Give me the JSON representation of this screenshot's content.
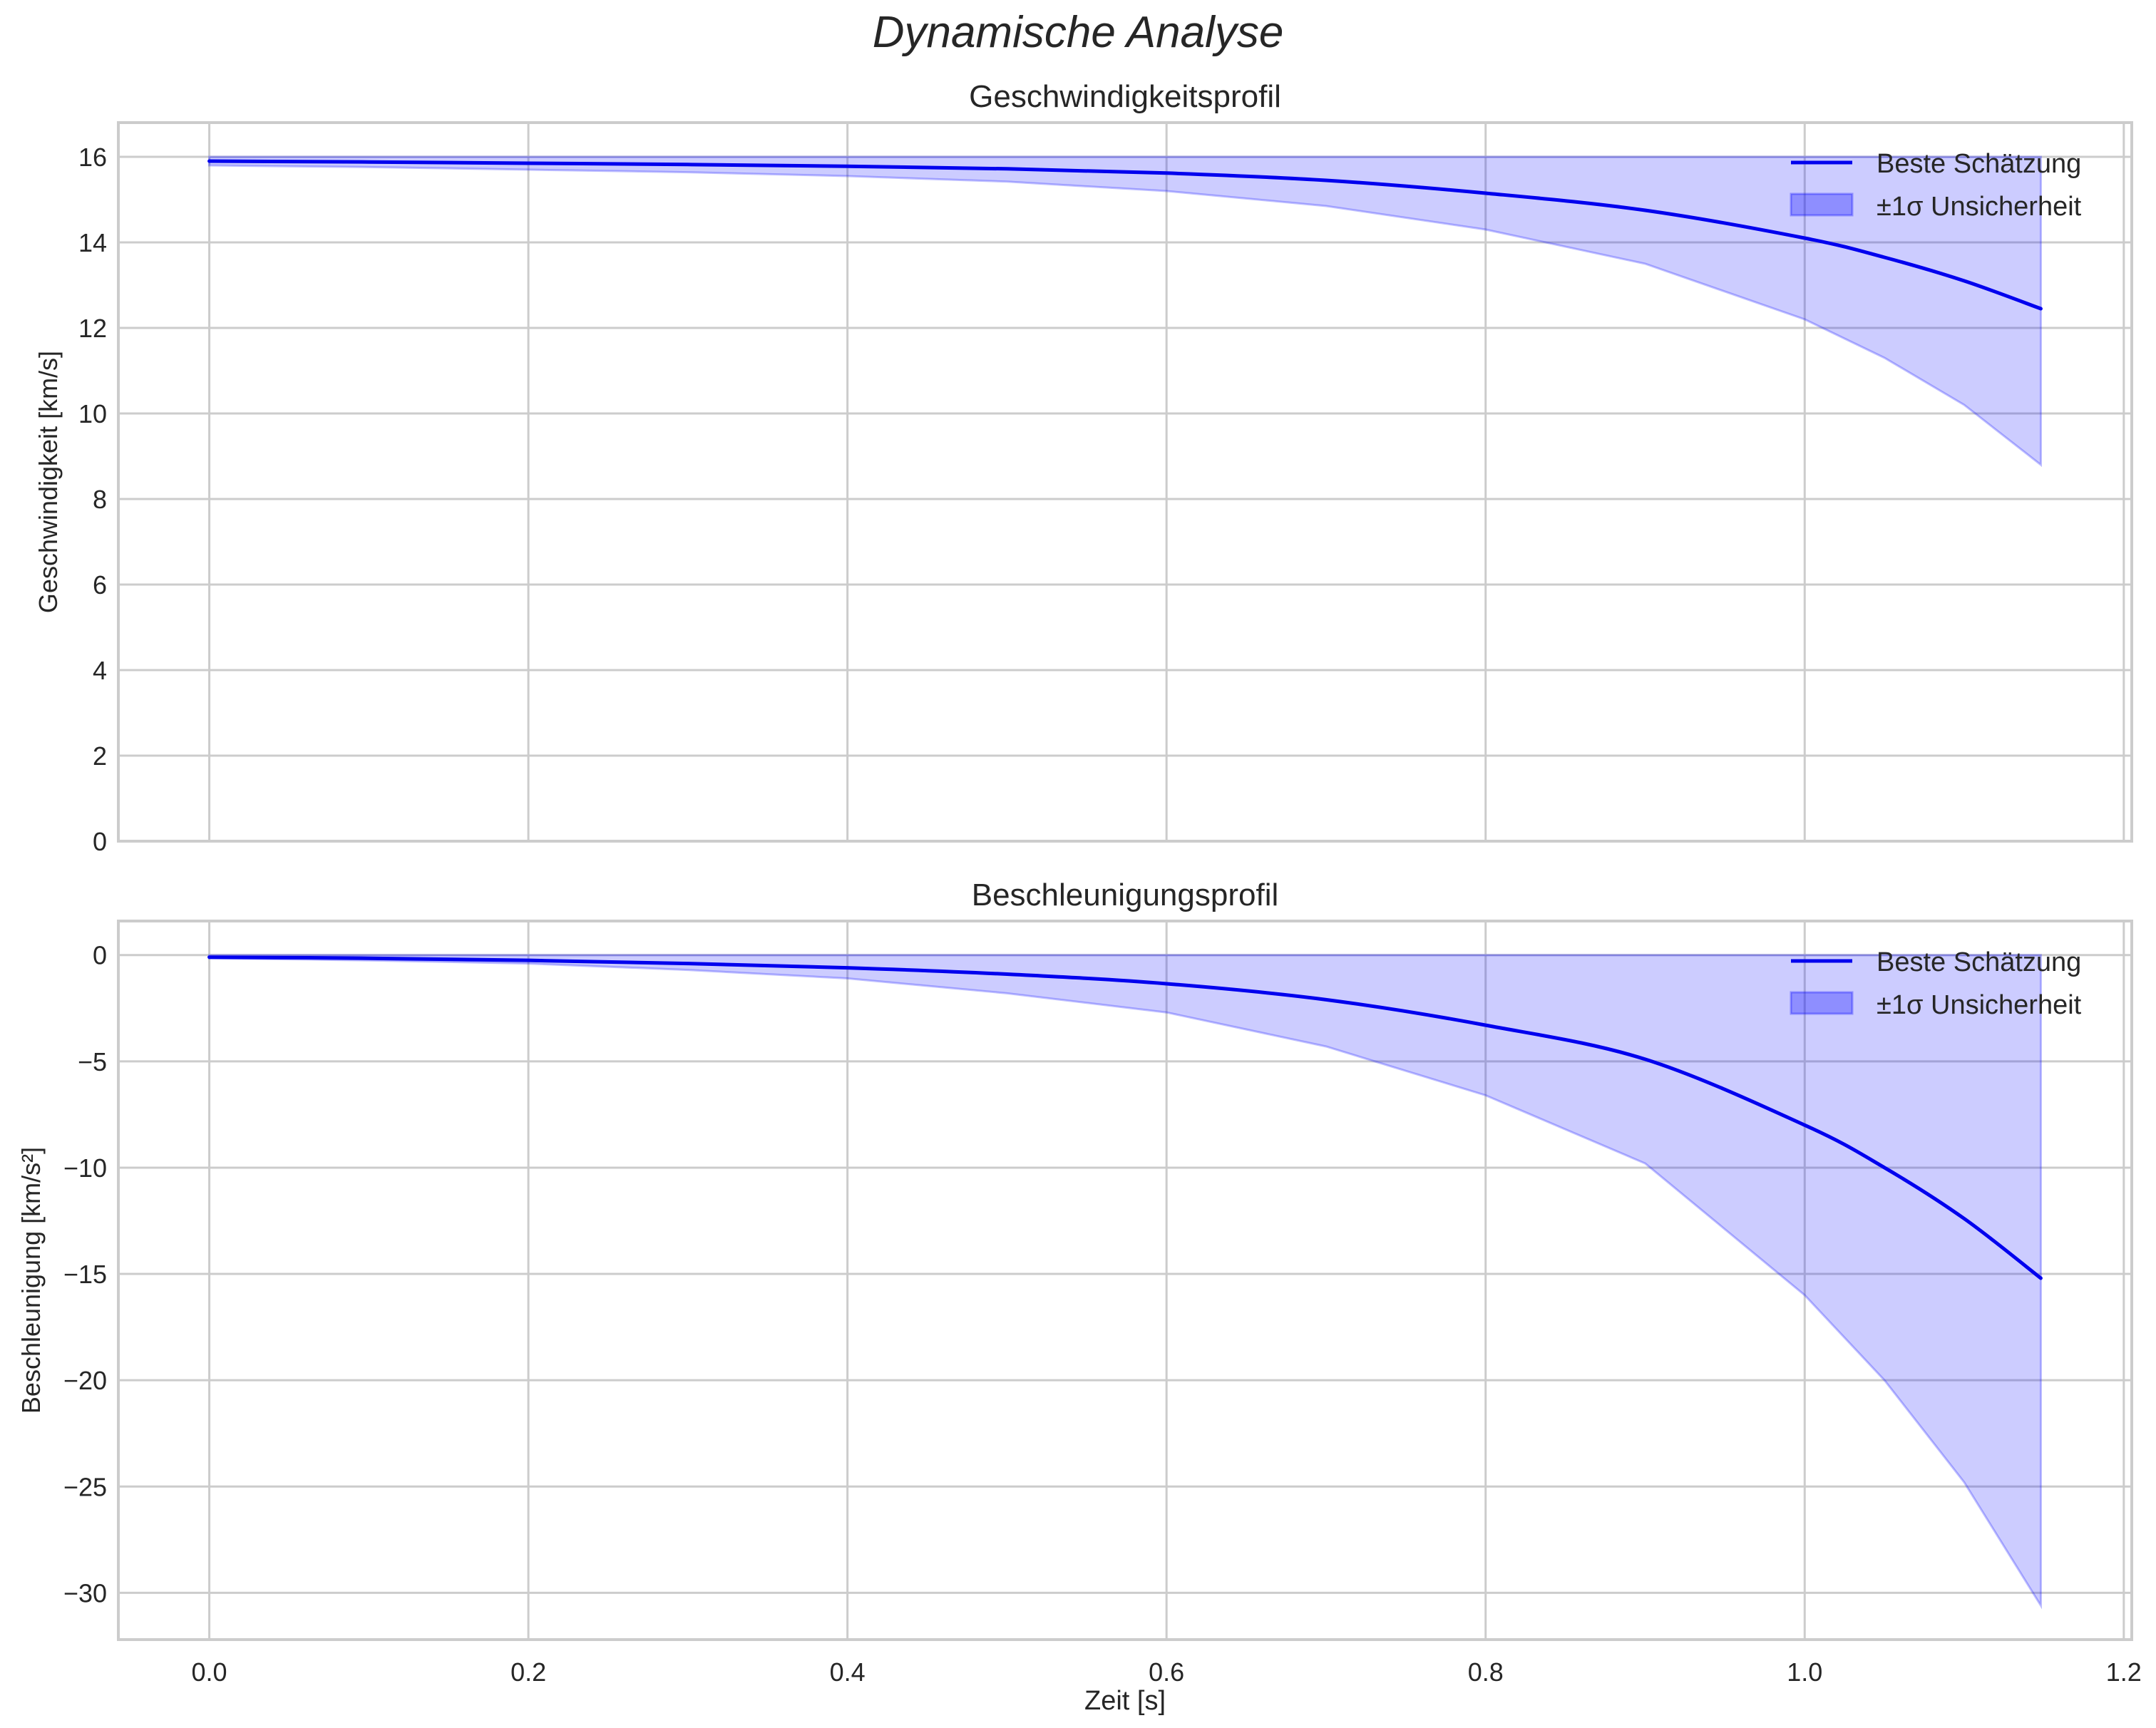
{
  "figure": {
    "suptitle": "Dynamische Analyse",
    "xlabel": "Zeit [s]"
  },
  "style": {
    "line_color": "#0000ee",
    "band_color": "#0000ff",
    "band_alpha": 0.2,
    "grid_color": "#cccccc",
    "axis_color": "#cccccc",
    "text_color": "#262626"
  },
  "chart_data": [
    {
      "type": "line",
      "title": "Geschwindigkeitsprofil",
      "xlabel": "",
      "ylabel": "Geschwindigkeit [km/s]",
      "xlim": [
        -0.057,
        1.205
      ],
      "ylim": [
        0,
        16.8
      ],
      "xticks": [
        "0.0",
        "0.2",
        "0.4",
        "0.6",
        "0.8",
        "1.0",
        "1.2"
      ],
      "xtick_values": [
        0,
        0.2,
        0.4,
        0.6,
        0.8,
        1.0,
        1.2
      ],
      "show_xticklabels": false,
      "yticks": [
        "0",
        "2",
        "4",
        "6",
        "8",
        "10",
        "12",
        "14",
        "16"
      ],
      "ytick_values": [
        0,
        2,
        4,
        6,
        8,
        10,
        12,
        14,
        16
      ],
      "grid": true,
      "legend_position": "upper right",
      "legend": [
        "Beste Schätzung",
        "±1σ Unsicherheit"
      ],
      "x": [
        0.0,
        0.1,
        0.2,
        0.3,
        0.4,
        0.5,
        0.6,
        0.7,
        0.8,
        0.9,
        1.0,
        1.05,
        1.1,
        1.148
      ],
      "series": [
        {
          "name": "Beste Schätzung",
          "kind": "line",
          "values": [
            15.9,
            15.88,
            15.85,
            15.82,
            15.78,
            15.72,
            15.62,
            15.45,
            15.15,
            14.75,
            14.1,
            13.65,
            13.1,
            12.45
          ]
        },
        {
          "name": "±1σ Unsicherheit (oben)",
          "kind": "band_upper",
          "values": [
            16.0,
            16.0,
            16.0,
            16.0,
            16.0,
            16.0,
            16.0,
            16.0,
            16.0,
            16.0,
            16.0,
            16.0,
            16.0,
            16.0
          ]
        },
        {
          "name": "±1σ Unsicherheit (unten)",
          "kind": "band_lower",
          "values": [
            15.8,
            15.76,
            15.7,
            15.64,
            15.55,
            15.42,
            15.2,
            14.85,
            14.3,
            13.5,
            12.2,
            11.3,
            10.2,
            8.8
          ]
        }
      ]
    },
    {
      "type": "line",
      "title": "Beschleunigungsprofil",
      "xlabel": "Zeit [s]",
      "ylabel": "Beschleunigung [km/s²]",
      "xlim": [
        -0.057,
        1.205
      ],
      "ylim": [
        -32.2,
        1.6
      ],
      "xticks": [
        "0.0",
        "0.2",
        "0.4",
        "0.6",
        "0.8",
        "1.0",
        "1.2"
      ],
      "xtick_values": [
        0,
        0.2,
        0.4,
        0.6,
        0.8,
        1.0,
        1.2
      ],
      "show_xticklabels": true,
      "yticks": [
        "0",
        "−5",
        "−10",
        "−15",
        "−20",
        "−25",
        "−30"
      ],
      "ytick_values": [
        0,
        -5,
        -10,
        -15,
        -20,
        -25,
        -30
      ],
      "grid": true,
      "legend_position": "upper right",
      "legend": [
        "Beste Schätzung",
        "±1σ Unsicherheit"
      ],
      "x": [
        0.0,
        0.1,
        0.2,
        0.3,
        0.4,
        0.5,
        0.6,
        0.7,
        0.8,
        0.9,
        1.0,
        1.05,
        1.1,
        1.148
      ],
      "series": [
        {
          "name": "Beste Schätzung",
          "kind": "line",
          "values": [
            -0.1,
            -0.15,
            -0.25,
            -0.4,
            -0.6,
            -0.9,
            -1.35,
            -2.1,
            -3.3,
            -4.9,
            -8.0,
            -10.0,
            -12.4,
            -15.2
          ]
        },
        {
          "name": "±1σ Unsicherheit (oben)",
          "kind": "band_upper",
          "values": [
            0,
            0,
            0,
            0,
            0,
            0,
            0,
            0,
            0,
            0,
            0,
            0,
            0,
            0
          ]
        },
        {
          "name": "±1σ Unsicherheit (unten)",
          "kind": "band_lower",
          "values": [
            -0.15,
            -0.25,
            -0.4,
            -0.7,
            -1.1,
            -1.8,
            -2.7,
            -4.3,
            -6.6,
            -9.8,
            -16.0,
            -20.0,
            -24.8,
            -30.6
          ]
        }
      ]
    }
  ]
}
